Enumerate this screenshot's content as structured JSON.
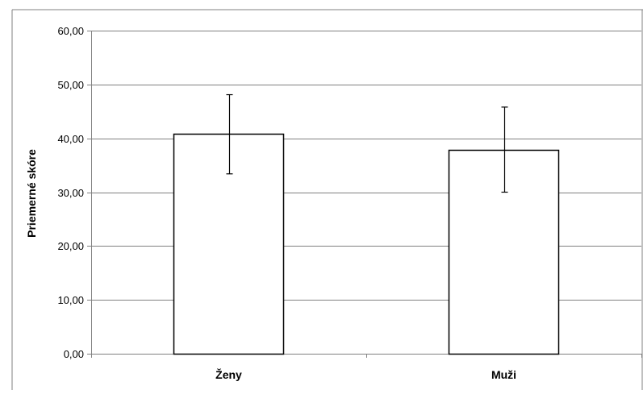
{
  "chart_data": {
    "type": "bar",
    "title": "",
    "xlabel": "",
    "ylabel": "Priemerné skóre",
    "categories": [
      "Ženy",
      "Muži"
    ],
    "values": [
      40.8,
      37.9
    ],
    "error_low": [
      33.4,
      30.0
    ],
    "error_high": [
      48.1,
      45.8
    ],
    "ylim": [
      0,
      60
    ],
    "yticks": [
      0,
      10,
      20,
      30,
      40,
      50,
      60
    ],
    "ytick_labels": [
      "0,00",
      "10,00",
      "20,00",
      "30,00",
      "40,00",
      "50,00",
      "60,00"
    ],
    "grid": true,
    "legend": "none",
    "colors": {
      "bar_fill": "#ffffff",
      "bar_stroke": "#000000",
      "grid": "#808080",
      "axis": "#808080"
    }
  }
}
